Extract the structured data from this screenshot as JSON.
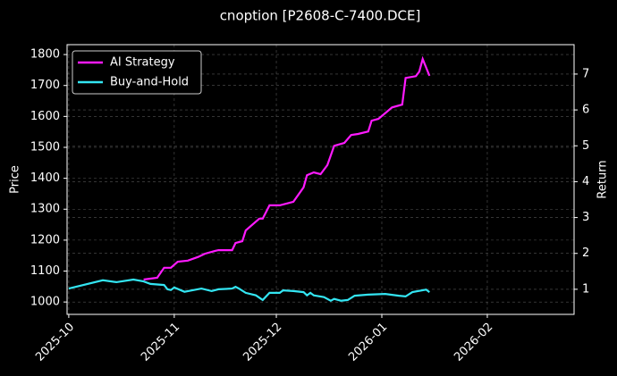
{
  "chart_data": {
    "type": "line",
    "title": "cnoption [P2608-C-7400.DCE]",
    "y_label": "Price",
    "y2_label": "Return",
    "xlim": [
      -0.5,
      148.5
    ],
    "xticks": [
      {
        "value": 0,
        "label": "2025-10"
      },
      {
        "value": 31,
        "label": "2025-11"
      },
      {
        "value": 61,
        "label": "2025-12"
      },
      {
        "value": 92,
        "label": "2026-01"
      },
      {
        "value": 123,
        "label": "2026-02"
      }
    ],
    "ylim": [
      960,
      1832
    ],
    "yticks": [
      1000,
      1100,
      1200,
      1300,
      1400,
      1500,
      1600,
      1700,
      1800
    ],
    "y2lim": [
      0.3,
      7.82
    ],
    "y2ticks": [
      1,
      2,
      3,
      4,
      5,
      6,
      7
    ],
    "grid": true,
    "legend": "upper left",
    "series": [
      {
        "name": "AI Strategy",
        "color": "#ff1aff",
        "axis": "y2",
        "x": [
          22,
          26,
          28,
          30,
          32,
          35,
          38,
          40,
          43,
          44,
          48,
          49,
          51,
          52,
          56,
          57,
          59,
          62,
          66,
          69,
          70,
          72,
          74,
          76,
          78,
          81,
          83,
          85,
          88,
          89,
          91,
          95,
          98,
          99,
          102,
          103,
          104,
          106
        ],
        "values": [
          1.27,
          1.32,
          1.6,
          1.6,
          1.77,
          1.8,
          1.9,
          1.99,
          2.07,
          2.09,
          2.09,
          2.29,
          2.34,
          2.64,
          2.97,
          2.97,
          3.34,
          3.34,
          3.44,
          3.84,
          4.18,
          4.26,
          4.21,
          4.46,
          5.0,
          5.08,
          5.3,
          5.33,
          5.4,
          5.7,
          5.75,
          6.07,
          6.15,
          6.89,
          6.94,
          7.07,
          7.42,
          6.95
        ]
      },
      {
        "name": "Buy-and-Hold",
        "color": "#33e5f2",
        "axis": "y2",
        "x": [
          0,
          10,
          14,
          19,
          22,
          24,
          28,
          29,
          30,
          31,
          34,
          39,
          42,
          44,
          48,
          49,
          50,
          52,
          55,
          57,
          59,
          62,
          63,
          66,
          69,
          70,
          71,
          72,
          75,
          77,
          78,
          80,
          82,
          84,
          88,
          93,
          97,
          99,
          101,
          105,
          106
        ],
        "values": [
          1.02,
          1.25,
          1.2,
          1.27,
          1.22,
          1.15,
          1.12,
          1.0,
          0.98,
          1.05,
          0.93,
          1.02,
          0.95,
          1.0,
          1.02,
          1.07,
          1.02,
          0.9,
          0.83,
          0.7,
          0.9,
          0.9,
          0.97,
          0.95,
          0.92,
          0.83,
          0.9,
          0.83,
          0.78,
          0.68,
          0.73,
          0.68,
          0.7,
          0.82,
          0.85,
          0.87,
          0.82,
          0.8,
          0.92,
          0.99,
          0.92
        ]
      }
    ]
  }
}
